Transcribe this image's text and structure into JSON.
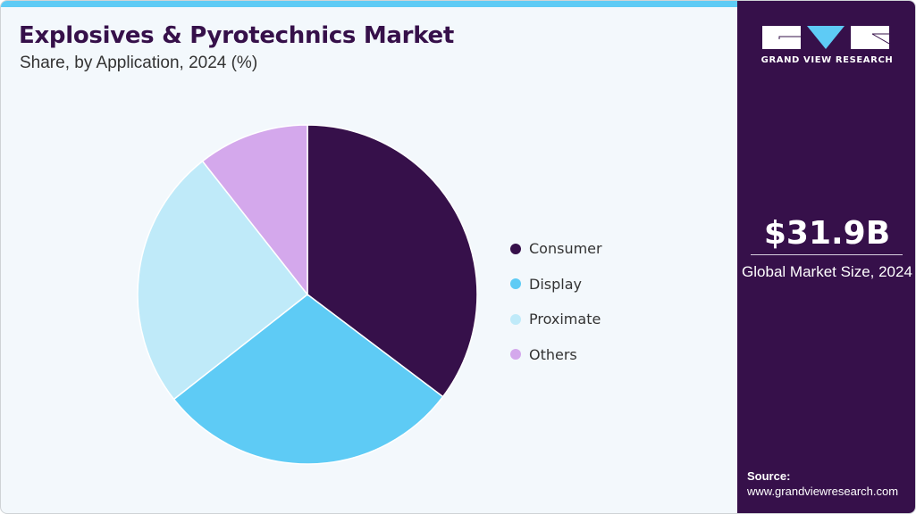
{
  "header": {
    "title": "Explosives & Pyrotechnics Market",
    "subtitle": "Share, by Application, 2024 (%)"
  },
  "legend": [
    {
      "label": "Consumer",
      "color": "#36104a"
    },
    {
      "label": "Display",
      "color": "#5ecbf5"
    },
    {
      "label": "Proximate",
      "color": "#bfeaf9"
    },
    {
      "label": "Others",
      "color": "#d4a8ec"
    }
  ],
  "sidebar": {
    "brand": "GRAND VIEW RESEARCH",
    "market_value": "$31.9B",
    "market_label": "Global Market Size, 2024",
    "source_label": "Source:",
    "source_url": "www.grandviewresearch.com"
  },
  "colors": {
    "accent": "#5ecbf5",
    "brand_dark": "#36104a",
    "background": "#f3f8fc"
  },
  "chart_data": {
    "type": "pie",
    "title": "Explosives & Pyrotechnics Market",
    "subtitle": "Share, by Application, 2024 (%)",
    "categories": [
      "Consumer",
      "Display",
      "Proximate",
      "Others"
    ],
    "values": [
      35.3,
      29.1,
      25.0,
      10.6
    ],
    "colors": [
      "#36104a",
      "#5ecbf5",
      "#bfeaf9",
      "#d4a8ec"
    ],
    "start_angle": "12 o'clock, clockwise",
    "legend_position": "right",
    "data_labels": false
  }
}
